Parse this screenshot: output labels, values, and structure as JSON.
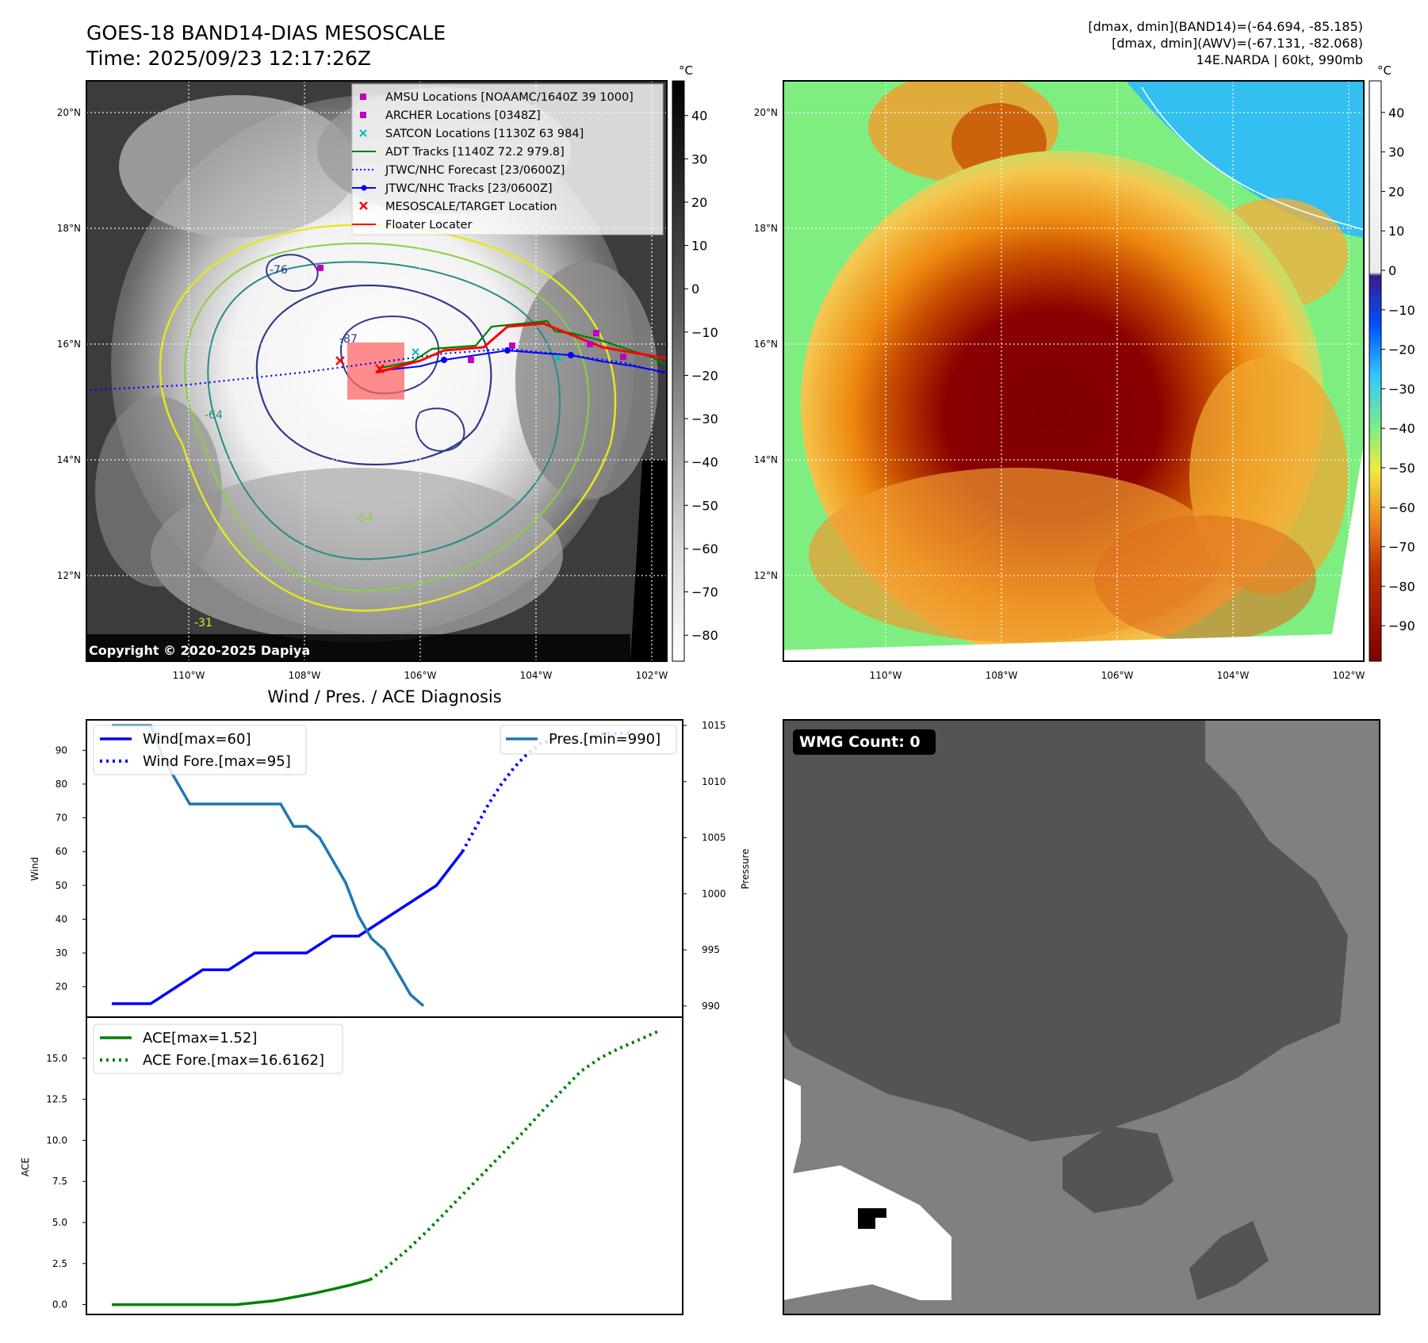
{
  "header": {
    "title_line1": "GOES-18 BAND14-DIAS MESOSCALE",
    "title_line2": "Time: 2025/09/23 12:17:26Z",
    "info_line1": "[dmax, dmin](BAND14)=(-64.694, -85.185)",
    "info_line2": "[dmax, dmin](AWV)=(-67.131, -82.068)",
    "info_line3": "14E.NARDA | 60kt, 990mb"
  },
  "colors": {
    "wind": "#0000ff",
    "pressure": "#1f77b4",
    "ace": "#008000",
    "adt": "#008000",
    "amsu": "#bf00bf",
    "satcon": "#00bfbf",
    "mesoscale": "#ff0000",
    "floater": "#ff0000",
    "ir_cold": "#7f0000",
    "ir_warm": "#80f080"
  },
  "map": {
    "lon_ticks": [
      "110°W",
      "108°W",
      "106°W",
      "104°W",
      "102°W"
    ],
    "lat_ticks": [
      "20°N",
      "18°N",
      "16°N",
      "14°N",
      "12°N"
    ],
    "copyright": "Copyright © 2020-2025 Dapiya",
    "colorbar_unit": "°C",
    "contour_labels": [
      "-76",
      "-87",
      "-64",
      "-54",
      "-31"
    ],
    "legend": [
      {
        "label": "AMSU Locations [NOAAMC/1640Z 39 1000]",
        "symbol": "square-marker",
        "color": "#bf00bf"
      },
      {
        "label": "ARCHER Locations [0348Z]",
        "symbol": "square-marker",
        "color": "#bf00bf"
      },
      {
        "label": "SATCON Locations [1130Z 63 984]",
        "symbol": "x-marker",
        "color": "#00bfbf"
      },
      {
        "label": "ADT Tracks [1140Z 72.2 979.8]",
        "symbol": "solid-line",
        "color": "#008000"
      },
      {
        "label": "JTWC/NHC Forecast [23/0600Z]",
        "symbol": "dotted-line",
        "color": "#0000ff"
      },
      {
        "label": "JTWC/NHC Tracks [23/0600Z]",
        "symbol": "line-dot",
        "color": "#0000ff"
      },
      {
        "label": "MESOSCALE/TARGET Location",
        "symbol": "x-marker",
        "color": "#ff0000"
      },
      {
        "label": "Floater Locater",
        "symbol": "solid-line",
        "color": "#ff0000"
      }
    ]
  },
  "colorbars": {
    "left_ticks": [
      "40",
      "30",
      "20",
      "10",
      "0",
      "−10",
      "−20",
      "−30",
      "−40",
      "−50",
      "−60",
      "−70",
      "−80"
    ],
    "right_ticks": [
      "40",
      "30",
      "20",
      "10",
      "0",
      "−10",
      "−20",
      "−30",
      "−40",
      "−50",
      "−60",
      "−70",
      "−80",
      "−90"
    ]
  },
  "wmg": {
    "label": "WMG Count: 0"
  },
  "chart_data": [
    {
      "type": "line",
      "title": "Wind / Pres. / ACE Diagnosis",
      "ylabel": "Wind",
      "ylim": [
        11,
        99
      ],
      "yticks": [
        "20",
        "30",
        "40",
        "50",
        "60",
        "70",
        "80",
        "90"
      ],
      "x_range": [
        0,
        40
      ],
      "series": [
        {
          "name": "Wind[max=60]",
          "style": "solid",
          "color": "#0000ff",
          "x": [
            0,
            3,
            5,
            7,
            9,
            11,
            13,
            15,
            17,
            19,
            21,
            23,
            25,
            27
          ],
          "y": [
            15,
            15,
            20,
            25,
            25,
            30,
            30,
            30,
            35,
            35,
            40,
            45,
            50,
            60
          ]
        },
        {
          "name": "Wind Fore.[max=95]",
          "style": "dotted",
          "color": "#0000ff",
          "x": [
            27,
            28,
            29,
            30,
            31,
            32,
            33,
            34,
            36,
            38,
            40
          ],
          "y": [
            60,
            67,
            74,
            80,
            85,
            89,
            92,
            93,
            93,
            95,
            95
          ]
        }
      ]
    },
    {
      "type": "line",
      "ylabel": "Pressure",
      "ylim": [
        989,
        1015.5
      ],
      "yticks": [
        "990",
        "995",
        "1000",
        "1005",
        "1010",
        "1015"
      ],
      "series": [
        {
          "name": "Pres.[min=990]",
          "style": "solid",
          "color": "#1f77b4",
          "x": [
            0,
            3,
            4,
            5,
            6,
            7,
            10,
            12,
            13,
            14,
            15,
            16,
            17,
            18,
            19,
            20,
            21,
            22,
            23,
            24
          ],
          "y": [
            1015,
            1015,
            1012,
            1010,
            1008,
            1008,
            1008,
            1008,
            1008,
            1006,
            1006,
            1005,
            1003,
            1001,
            998,
            996,
            995,
            993,
            991,
            990
          ]
        }
      ]
    },
    {
      "type": "line",
      "ylabel": "ACE",
      "ylim": [
        -0.6,
        17.5
      ],
      "yticks": [
        "0.0",
        "2.5",
        "5.0",
        "7.5",
        "10.0",
        "12.5",
        "15.0"
      ],
      "series": [
        {
          "name": "ACE[max=1.52]",
          "style": "solid",
          "color": "#008000",
          "x": [
            0,
            11,
            13,
            15,
            17,
            19,
            21,
            23,
            25,
            27
          ],
          "y": [
            0,
            0,
            0,
            0.12,
            0.24,
            0.45,
            0.67,
            0.93,
            1.2,
            1.52
          ]
        },
        {
          "name": "ACE Fore.[max=16.6162]",
          "style": "dotted",
          "color": "#008000",
          "x": [
            27,
            29,
            31,
            33,
            35,
            37,
            39,
            41,
            43,
            45,
            47,
            49,
            51,
            53,
            55,
            57
          ],
          "y": [
            1.52,
            2.4,
            3.4,
            4.5,
            5.7,
            6.9,
            8.1,
            9.3,
            10.5,
            11.8,
            13.0,
            14.2,
            15.0,
            15.6,
            16.1,
            16.6162
          ]
        }
      ]
    }
  ]
}
